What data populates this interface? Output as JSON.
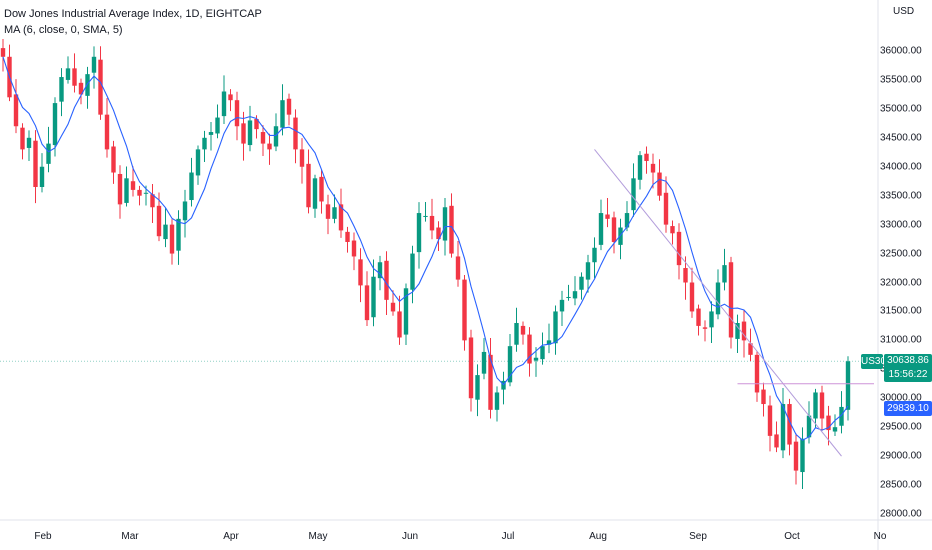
{
  "legend": {
    "title": "Dow Jones Industrial Average Index, 1D, EIGHTCAP",
    "indicator": "MA (6, close, 0, SMA, 5)"
  },
  "price_scale": {
    "currency": "USD"
  },
  "badges": {
    "symbol": "US30",
    "last_price": "30638.86",
    "countdown": "15:56:22",
    "ma_value": "29839.10"
  },
  "colors": {
    "up": "#089981",
    "down": "#f23645",
    "ma_line": "#2962ff",
    "trendline": "#b39ddb",
    "horizontal_line": "#ce93d8",
    "price_line": "#089981"
  },
  "chart_data": {
    "type": "candlestick",
    "title": "Dow Jones Industrial Average Index, 1D, EIGHTCAP",
    "ylim": [
      27900,
      36750
    ],
    "y_ticks": [
      "28000.00",
      "28500.00",
      "29000.00",
      "29500.00",
      "30000.00",
      "30500.00",
      "31000.00",
      "31500.00",
      "32000.00",
      "32500.00",
      "33000.00",
      "33500.00",
      "34000.00",
      "34500.00",
      "35000.00",
      "35500.00",
      "36000.00"
    ],
    "x_ticks": [
      "Feb",
      "Mar",
      "Apr",
      "May",
      "Jun",
      "Jul",
      "Aug",
      "Sep",
      "Oct",
      "No"
    ],
    "series": [
      {
        "name": "MA (6, close, 0, SMA, 5)",
        "kind": "line"
      }
    ],
    "closes": [
      35900,
      35200,
      34700,
      34300,
      34500,
      33650,
      34000,
      34400,
      35100,
      35550,
      35700,
      35400,
      35250,
      35600,
      35900,
      34900,
      34300,
      33900,
      33350,
      33800,
      33600,
      33500,
      33550,
      33300,
      32800,
      33000,
      32500,
      33100,
      33400,
      33900,
      34300,
      34500,
      34600,
      34850,
      35300,
      35150,
      34700,
      34400,
      34800,
      34650,
      34400,
      34300,
      34700,
      35150,
      34900,
      34300,
      34000,
      33300,
      33800,
      33400,
      33100,
      33300,
      32900,
      32700,
      32450,
      31950,
      31350,
      32100,
      32350,
      31700,
      31500,
      31050,
      31900,
      32500,
      33200,
      33150,
      32900,
      32750,
      33300,
      32500,
      32050,
      31000,
      30000,
      30400,
      30800,
      29800,
      30100,
      30300,
      30900,
      31300,
      31100,
      30600,
      30700,
      30900,
      31000,
      31500,
      31700,
      31750,
      31850,
      32100,
      32350,
      32600,
      33200,
      33100,
      32700,
      32950,
      33200,
      33800,
      34200,
      34100,
      33900,
      33500,
      33000,
      32850,
      32300,
      32000,
      31500,
      31250,
      31200,
      31500,
      32000,
      32300,
      31050,
      31300,
      31000,
      30750,
      30100,
      29900,
      29350,
      29150,
      29900,
      29200,
      28750,
      29300,
      29700,
      30100,
      29650,
      29450,
      29500,
      29850,
      30639
    ],
    "ma_line": "MA (6, close, 0, SMA, 5)",
    "horizontal_level": 30250,
    "trendline": {
      "from": [
        91,
        34300
      ],
      "to": [
        129,
        29000
      ]
    }
  }
}
